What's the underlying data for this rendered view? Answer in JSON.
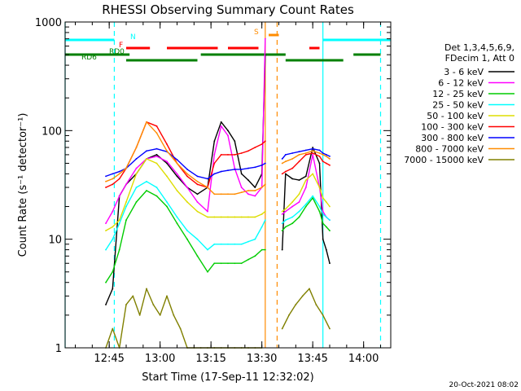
{
  "chart_data": {
    "type": "line",
    "title": "RHESSI Observing Summary Count Rates",
    "xlabel": "Start Time (17-Sep-11 12:32:02)",
    "ylabel": "Count Rate (s⁻¹ detector⁻¹)",
    "x_unit": "minutes after 12:32:02",
    "xlim": [
      0,
      96
    ],
    "ylim": [
      1,
      1000
    ],
    "y_scale": "log",
    "x_ticks": [
      {
        "label": "12:45",
        "value": 13
      },
      {
        "label": "13:00",
        "value": 28
      },
      {
        "label": "13:15",
        "value": 43
      },
      {
        "label": "13:30",
        "value": 58
      },
      {
        "label": "13:45",
        "value": 73
      },
      {
        "label": "14:00",
        "value": 88
      }
    ],
    "y_ticks": [
      {
        "label": "1",
        "value": 1
      },
      {
        "label": "10",
        "value": 10
      },
      {
        "label": "100",
        "value": 100
      },
      {
        "label": "1000",
        "value": 1000
      }
    ],
    "legend_header": [
      "Det 1,3,4,5,6,9,",
      "FDecim 1, Att 0"
    ],
    "legend_position": "right",
    "timestamp": "20-Oct-2021 08:02",
    "flags": [
      {
        "label": "N",
        "color": "#00ffff",
        "segments": [
          [
            0,
            14.5
          ],
          [
            76,
            96
          ]
        ]
      },
      {
        "label": "F",
        "color": "#ff0000",
        "segments": [
          [
            18,
            25
          ],
          [
            30,
            45
          ],
          [
            48,
            57
          ],
          [
            72,
            75
          ]
        ]
      },
      {
        "label": "S",
        "color": "#ff8c00",
        "segments": [
          [
            60,
            63
          ]
        ]
      },
      {
        "label": "RD0",
        "color": "#008000",
        "segments": [
          [
            0,
            19
          ],
          [
            40,
            65
          ],
          [
            85,
            93
          ]
        ]
      },
      {
        "label": "RD6",
        "color": "#008000",
        "segments": [
          [
            18,
            39
          ],
          [
            65,
            82
          ]
        ]
      }
    ],
    "vlines": [
      {
        "x": 0,
        "color": "#00ffff",
        "style": "solid"
      },
      {
        "x": 14.5,
        "color": "#00ffff",
        "style": "dashed"
      },
      {
        "x": 59,
        "color": "#ff8c00",
        "style": "solid"
      },
      {
        "x": 62.5,
        "color": "#ff8c00",
        "style": "dashed"
      },
      {
        "x": 76,
        "color": "#00ffff",
        "style": "solid"
      },
      {
        "x": 93,
        "color": "#00ffff",
        "style": "dashed"
      }
    ],
    "series": [
      {
        "name": "3 - 6 keV",
        "color": "#000000",
        "x": [
          12,
          14,
          16,
          18,
          21,
          24,
          27,
          30,
          33,
          36,
          39,
          42,
          44,
          46,
          48,
          50,
          52,
          54,
          56,
          58,
          59,
          64,
          65,
          67,
          69,
          71,
          73,
          75,
          76,
          77,
          78
        ],
        "y": [
          2.5,
          3.5,
          25,
          32,
          40,
          55,
          60,
          50,
          38,
          30,
          26,
          30,
          80,
          120,
          100,
          80,
          40,
          35,
          30,
          40,
          500,
          8,
          40,
          36,
          35,
          38,
          70,
          50,
          10,
          8,
          6
        ]
      },
      {
        "name": "6 - 12 keV",
        "color": "#ff00ff",
        "x": [
          12,
          14,
          16,
          18,
          21,
          24,
          27,
          30,
          33,
          36,
          39,
          42,
          44,
          46,
          48,
          50,
          52,
          54,
          56,
          58,
          59,
          64,
          65,
          67,
          69,
          71,
          73,
          75,
          76,
          77,
          78
        ],
        "y": [
          14,
          18,
          25,
          32,
          45,
          55,
          58,
          52,
          40,
          30,
          22,
          18,
          60,
          110,
          90,
          45,
          30,
          26,
          25,
          30,
          700,
          17,
          18,
          20,
          22,
          30,
          60,
          30,
          18,
          16,
          15
        ]
      },
      {
        "name": "12 - 25 keV",
        "color": "#00cc00",
        "x": [
          12,
          14,
          16,
          18,
          21,
          24,
          27,
          30,
          33,
          36,
          39,
          42,
          44,
          46,
          48,
          50,
          52,
          54,
          56,
          58,
          59,
          64,
          65,
          67,
          69,
          71,
          73,
          75,
          76,
          77,
          78
        ],
        "y": [
          4,
          5,
          8,
          15,
          22,
          28,
          25,
          20,
          14,
          10,
          7,
          5,
          6,
          6,
          6,
          6,
          6,
          6.5,
          7,
          8,
          8,
          12,
          13,
          14,
          16,
          20,
          24,
          18,
          14,
          13,
          12
        ]
      },
      {
        "name": "25 - 50 keV",
        "color": "#00ffff",
        "x": [
          12,
          14,
          16,
          18,
          21,
          24,
          27,
          30,
          33,
          36,
          39,
          42,
          44,
          46,
          48,
          50,
          52,
          54,
          56,
          58,
          59,
          64,
          65,
          67,
          69,
          71,
          73,
          75,
          76,
          77,
          78
        ],
        "y": [
          8,
          10,
          14,
          20,
          30,
          34,
          30,
          22,
          16,
          12,
          10,
          8,
          9,
          9,
          9,
          9,
          9,
          9.5,
          10,
          13,
          15,
          14,
          15,
          16,
          18,
          21,
          25,
          20,
          17,
          16,
          15
        ]
      },
      {
        "name": "50 - 100 keV",
        "color": "#dddd00",
        "x": [
          12,
          14,
          16,
          18,
          21,
          24,
          27,
          30,
          33,
          36,
          39,
          42,
          44,
          46,
          48,
          50,
          52,
          54,
          56,
          58,
          59,
          64,
          65,
          67,
          69,
          71,
          73,
          75,
          76,
          77,
          78
        ],
        "y": [
          12,
          13,
          15,
          22,
          40,
          55,
          50,
          38,
          28,
          22,
          18,
          16,
          16,
          16,
          16,
          16,
          16,
          16,
          16,
          17,
          18,
          18,
          19,
          22,
          26,
          35,
          40,
          30,
          24,
          22,
          20
        ]
      },
      {
        "name": "100 - 300 keV",
        "color": "#ff0000",
        "x": [
          12,
          14,
          16,
          18,
          21,
          24,
          27,
          30,
          33,
          36,
          39,
          42,
          44,
          46,
          48,
          50,
          52,
          54,
          56,
          58,
          59,
          64,
          65,
          67,
          69,
          71,
          73,
          75,
          76,
          77,
          78
        ],
        "y": [
          30,
          32,
          36,
          45,
          70,
          120,
          110,
          75,
          50,
          38,
          32,
          30,
          50,
          60,
          60,
          60,
          62,
          65,
          70,
          75,
          80,
          40,
          42,
          45,
          52,
          60,
          62,
          58,
          52,
          50,
          48
        ]
      },
      {
        "name": "300 - 800 keV",
        "color": "#0000ff",
        "x": [
          12,
          14,
          16,
          18,
          21,
          24,
          27,
          30,
          33,
          36,
          39,
          42,
          44,
          46,
          48,
          50,
          52,
          54,
          56,
          58,
          59,
          64,
          65,
          67,
          69,
          71,
          73,
          75,
          76,
          77,
          78
        ],
        "y": [
          38,
          40,
          42,
          45,
          55,
          65,
          68,
          64,
          54,
          44,
          38,
          36,
          40,
          42,
          43,
          44,
          44,
          45,
          46,
          48,
          50,
          55,
          60,
          62,
          64,
          66,
          68,
          66,
          62,
          60,
          58
        ]
      },
      {
        "name": "800 - 7000 keV",
        "color": "#ff8c00",
        "x": [
          12,
          14,
          16,
          18,
          21,
          24,
          27,
          30,
          33,
          36,
          39,
          42,
          44,
          46,
          48,
          50,
          52,
          54,
          56,
          58,
          59,
          64,
          65,
          67,
          69,
          71,
          73,
          75,
          76,
          77,
          78
        ],
        "y": [
          34,
          36,
          40,
          45,
          70,
          120,
          95,
          65,
          50,
          40,
          34,
          30,
          26,
          26,
          26,
          26,
          27,
          28,
          28,
          30,
          32,
          50,
          52,
          55,
          60,
          62,
          65,
          62,
          60,
          58,
          55
        ]
      },
      {
        "name": "7000 - 15000 keV",
        "color": "#808000",
        "x": [
          12,
          14,
          16,
          18,
          20,
          22,
          24,
          26,
          28,
          30,
          32,
          34,
          36,
          38,
          40,
          42,
          44,
          46,
          48,
          50,
          52,
          54,
          56,
          58,
          64,
          66,
          68,
          70,
          72,
          74,
          76,
          78
        ],
        "y": [
          1,
          1.5,
          1,
          2.5,
          3,
          2,
          3.5,
          2.5,
          2,
          3,
          2,
          1.5,
          1,
          1,
          1,
          1,
          1,
          1,
          1,
          1,
          1,
          1,
          1,
          1,
          1.5,
          2,
          2.5,
          3,
          3.5,
          2.5,
          2,
          1.5
        ]
      }
    ]
  }
}
